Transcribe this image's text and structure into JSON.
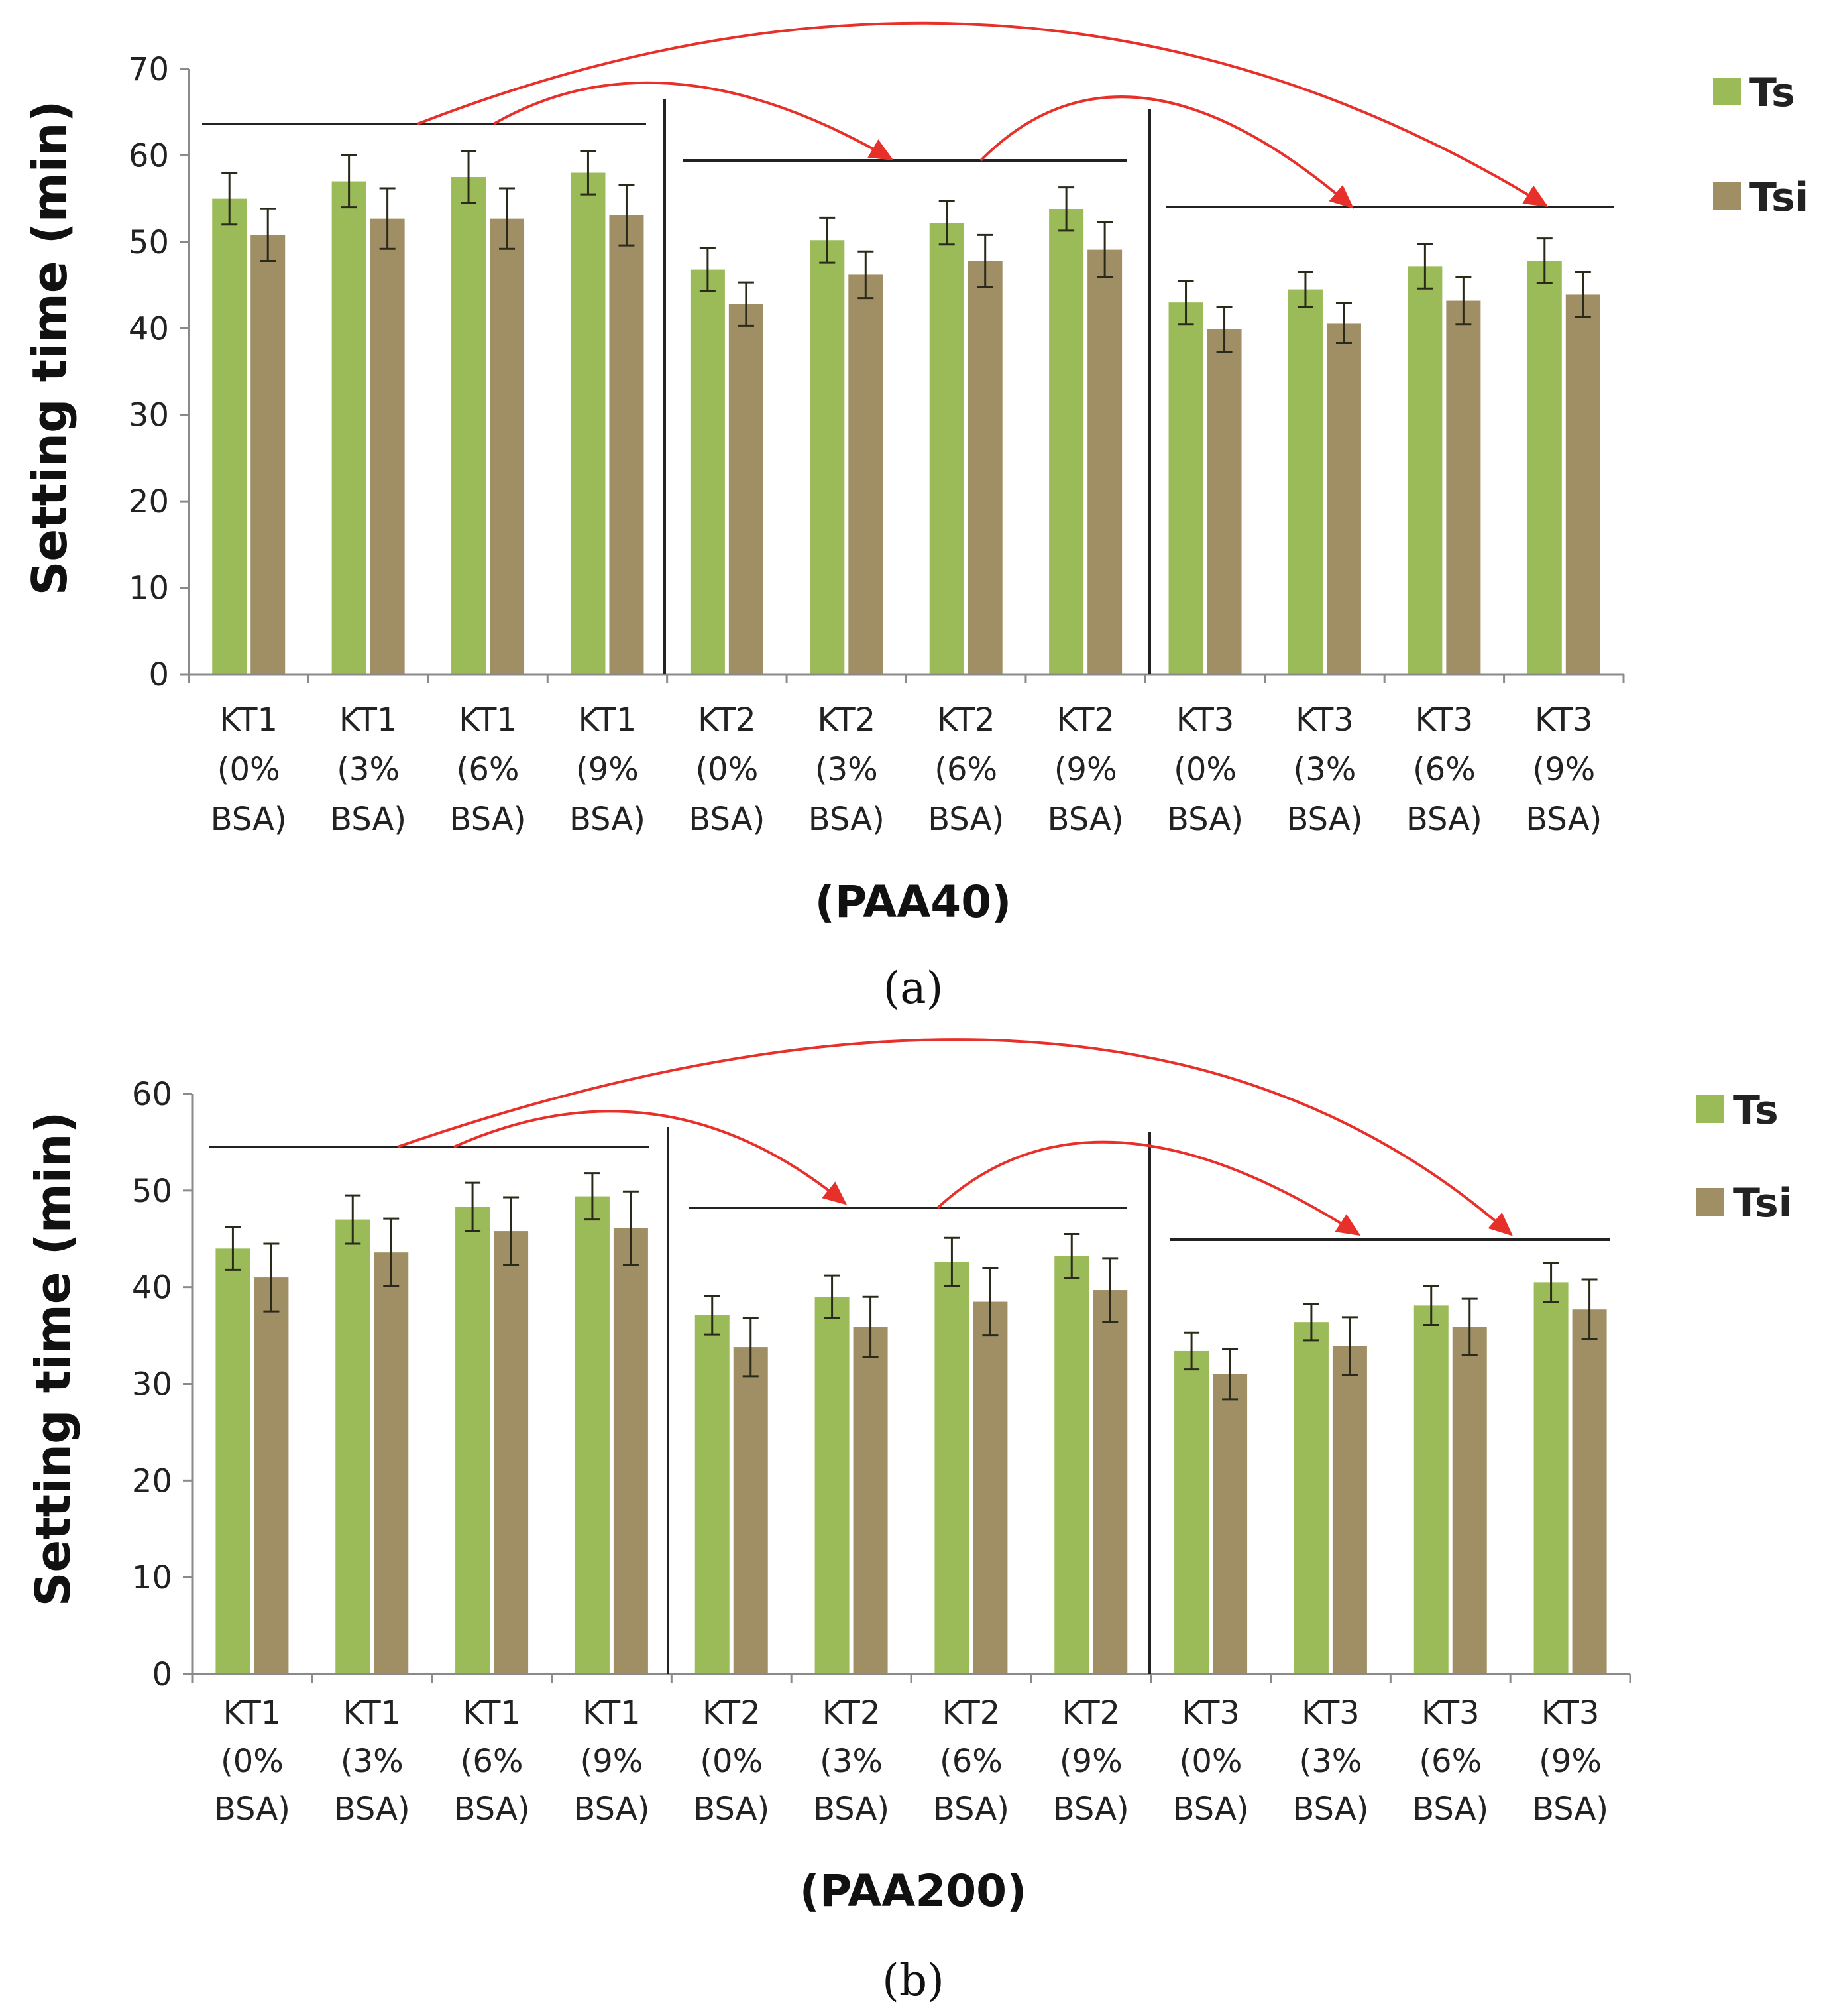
{
  "chart_data": [
    {
      "type": "bar",
      "panel": "(a)",
      "ylabel": "Setting time (min)",
      "xlabel": "(PAA40)",
      "ylim": [
        0,
        70
      ],
      "yticks": [
        0,
        10,
        20,
        30,
        40,
        50,
        60,
        70
      ],
      "categories": [
        [
          "KT1",
          "(0%",
          "BSA)"
        ],
        [
          "KT1",
          "(3%",
          "BSA)"
        ],
        [
          "KT1",
          "(6%",
          "BSA)"
        ],
        [
          "KT1",
          "(9%",
          "BSA)"
        ],
        [
          "KT2",
          "(0%",
          "BSA)"
        ],
        [
          "KT2",
          "(3%",
          "BSA)"
        ],
        [
          "KT2",
          "(6%",
          "BSA)"
        ],
        [
          "KT2",
          "(9%",
          "BSA)"
        ],
        [
          "KT3",
          "(0%",
          "BSA)"
        ],
        [
          "KT3",
          "(3%",
          "BSA)"
        ],
        [
          "KT3",
          "(6%",
          "BSA)"
        ],
        [
          "KT3",
          "(9%",
          "BSA)"
        ]
      ],
      "series": [
        {
          "name": "Ts",
          "color": "#9bbb59",
          "values": [
            55.0,
            57.0,
            57.5,
            58.0,
            46.8,
            50.2,
            52.2,
            53.8,
            43.0,
            44.5,
            47.2,
            47.8
          ],
          "errors": [
            3.0,
            3.0,
            3.0,
            2.5,
            2.5,
            2.6,
            2.5,
            2.5,
            2.5,
            2.0,
            2.6,
            2.6
          ]
        },
        {
          "name": "Tsi",
          "color": "#a08f65",
          "values": [
            50.8,
            52.7,
            52.7,
            53.1,
            42.8,
            46.2,
            47.8,
            49.1,
            39.9,
            40.6,
            43.2,
            43.9
          ],
          "errors": [
            3.0,
            3.5,
            3.5,
            3.5,
            2.5,
            2.7,
            3.0,
            3.2,
            2.6,
            2.3,
            2.7,
            2.6
          ]
        }
      ],
      "annotations": "Group bracket lines over KT1, KT2 and KT3 with red curved arrows indicating comparisons KT1→KT2, KT1→KT3 and KT2→KT3",
      "legend": "right"
    },
    {
      "type": "bar",
      "panel": "(b)",
      "ylabel": "Setting time (min)",
      "xlabel": "(PAA200)",
      "ylim": [
        0,
        60
      ],
      "yticks": [
        0,
        10,
        20,
        30,
        40,
        50,
        60
      ],
      "categories": [
        [
          "KT1",
          "(0%",
          "BSA)"
        ],
        [
          "KT1",
          "(3%",
          "BSA)"
        ],
        [
          "KT1",
          "(6%",
          "BSA)"
        ],
        [
          "KT1",
          "(9%",
          "BSA)"
        ],
        [
          "KT2",
          "(0%",
          "BSA)"
        ],
        [
          "KT2",
          "(3%",
          "BSA)"
        ],
        [
          "KT2",
          "(6%",
          "BSA)"
        ],
        [
          "KT2",
          "(9%",
          "BSA)"
        ],
        [
          "KT3",
          "(0%",
          "BSA)"
        ],
        [
          "KT3",
          "(3%",
          "BSA)"
        ],
        [
          "KT3",
          "(6%",
          "BSA)"
        ],
        [
          "KT3",
          "(9%",
          "BSA)"
        ]
      ],
      "series": [
        {
          "name": "Ts",
          "color": "#9bbb59",
          "values": [
            44.0,
            47.0,
            48.3,
            49.4,
            37.1,
            39.0,
            42.6,
            43.2,
            33.4,
            36.4,
            38.1,
            40.5
          ],
          "errors": [
            2.2,
            2.5,
            2.5,
            2.4,
            2.0,
            2.2,
            2.5,
            2.3,
            1.9,
            1.9,
            2.0,
            2.0
          ]
        },
        {
          "name": "Tsi",
          "color": "#a08f65",
          "values": [
            41.0,
            43.6,
            45.8,
            46.1,
            33.8,
            35.9,
            38.5,
            39.7,
            31.0,
            33.9,
            35.9,
            37.7
          ],
          "errors": [
            3.5,
            3.5,
            3.5,
            3.8,
            3.0,
            3.1,
            3.5,
            3.3,
            2.6,
            3.0,
            2.9,
            3.1
          ]
        }
      ],
      "annotations": "Group bracket lines over KT1, KT2 and KT3 with red curved arrows indicating comparisons KT1→KT2, KT1→KT3 and KT2→KT3",
      "legend": "right"
    }
  ]
}
